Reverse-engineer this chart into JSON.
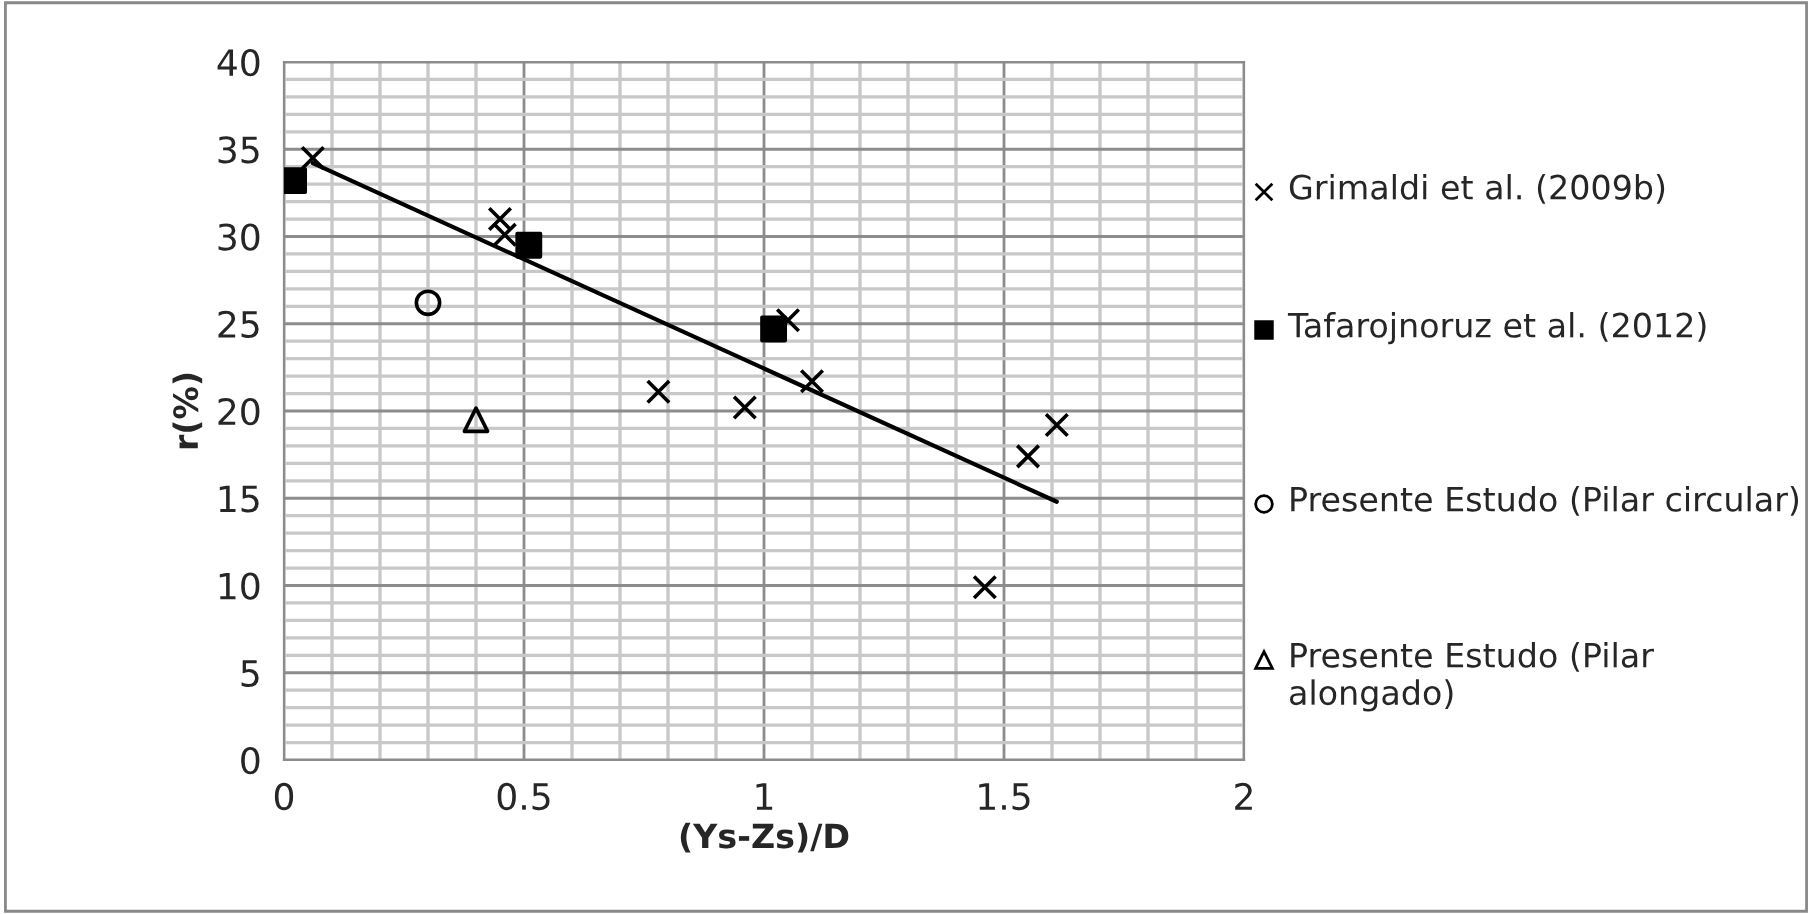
{
  "chart_data": {
    "type": "scatter",
    "xlabel": "(Ys-Zs)/D",
    "ylabel": "r(%)",
    "xlim": [
      0,
      2
    ],
    "ylim": [
      0,
      40
    ],
    "xticks": [
      0,
      0.5,
      1,
      1.5,
      2
    ],
    "yticks": [
      0,
      5,
      10,
      15,
      20,
      25,
      30,
      35,
      40
    ],
    "grid": true,
    "legend": "right",
    "series": [
      {
        "name": "Grimaldi et al. (2009b)",
        "color": "#000000",
        "marker": "cross",
        "x": [
          0.06,
          0.45,
          0.46,
          0.78,
          0.96,
          1.05,
          1.1,
          1.46,
          1.55,
          1.61
        ],
        "values": [
          34.5,
          31,
          30.1,
          21.1,
          20.2,
          25.2,
          21.7,
          9.9,
          17.4,
          19.2
        ]
      },
      {
        "name": "Tafarojnoruz et al. (2012)",
        "color": "#000000",
        "marker": "square",
        "x": [
          0.02,
          0.51,
          1.02
        ],
        "values": [
          33.2,
          29.5,
          24.7
        ]
      },
      {
        "name": "Presente Estudo (Pilar circular)",
        "color": "#000000",
        "marker": "circle",
        "x": [
          0.3
        ],
        "values": [
          26.2
        ]
      },
      {
        "name": "Presente Estudo (Pilar alongado)",
        "color": "#000000",
        "marker": "triangle",
        "x": [
          0.4
        ],
        "values": [
          19.5
        ]
      },
      {
        "type": "line",
        "color": "#000000",
        "marker": "none",
        "x": [
          0.06,
          1.61
        ],
        "values": [
          34.2,
          14.8
        ]
      }
    ]
  }
}
